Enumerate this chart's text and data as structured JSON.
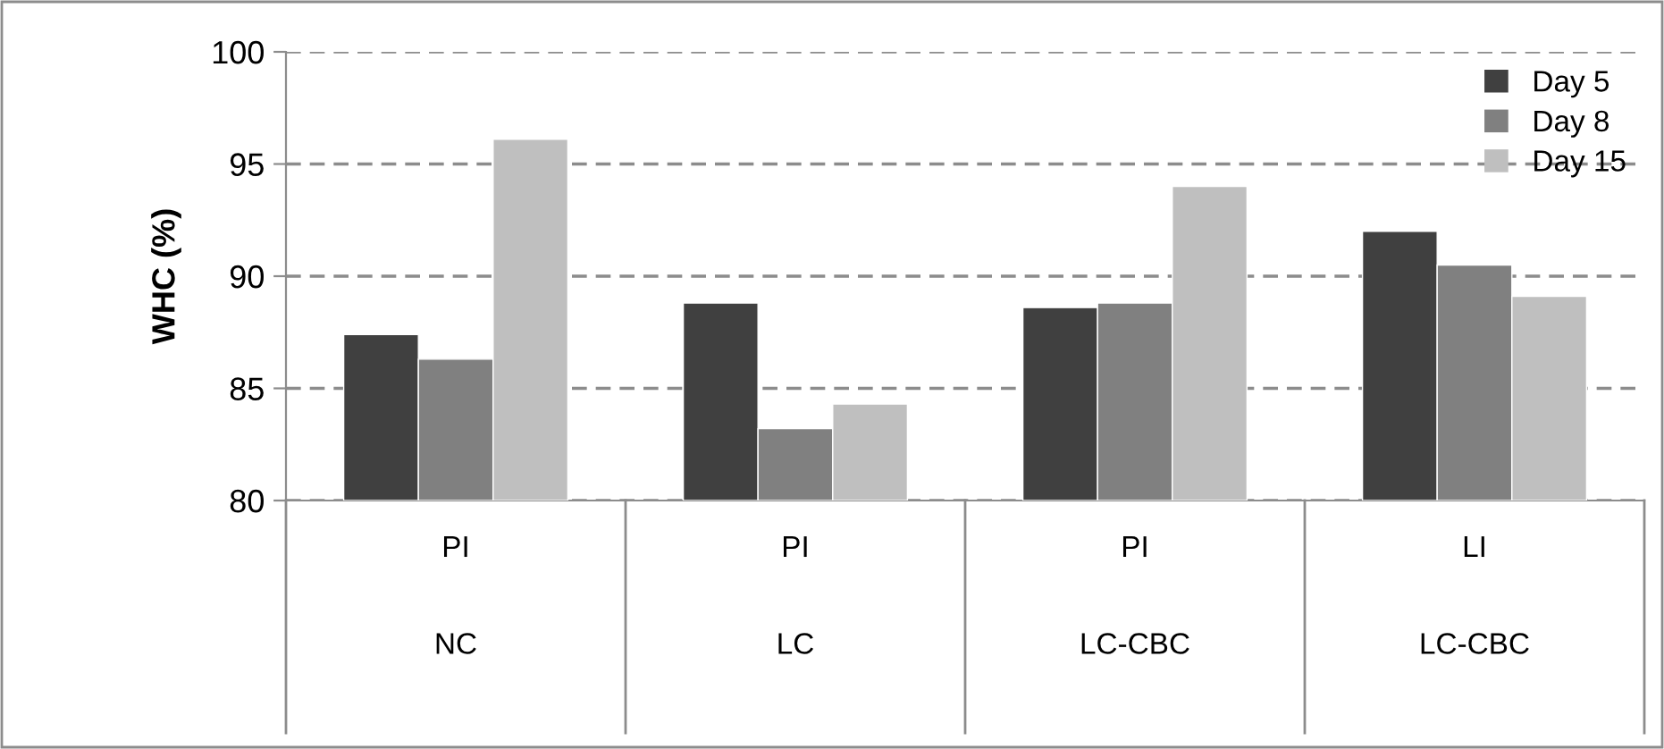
{
  "chart_data": {
    "type": "bar",
    "ylabel": "WHC (%)",
    "categories": [
      "PI\nNC",
      "PI\nLC",
      "PI\nLC-CBC",
      "LI\nLC-CBC"
    ],
    "series": [
      {
        "name": "Day 5",
        "color": "#404040",
        "values": [
          87.4,
          88.8,
          88.6,
          92.0
        ]
      },
      {
        "name": "Day 8",
        "color": "#808080",
        "values": [
          86.3,
          83.2,
          88.8,
          90.5
        ]
      },
      {
        "name": "Day 15",
        "color": "#bfbfbf",
        "values": [
          96.1,
          84.3,
          94.0,
          89.1
        ]
      }
    ],
    "ylim": [
      80,
      100
    ],
    "yticks": [
      80,
      85,
      90,
      95,
      100
    ],
    "grid": "y",
    "legend": "top right"
  }
}
